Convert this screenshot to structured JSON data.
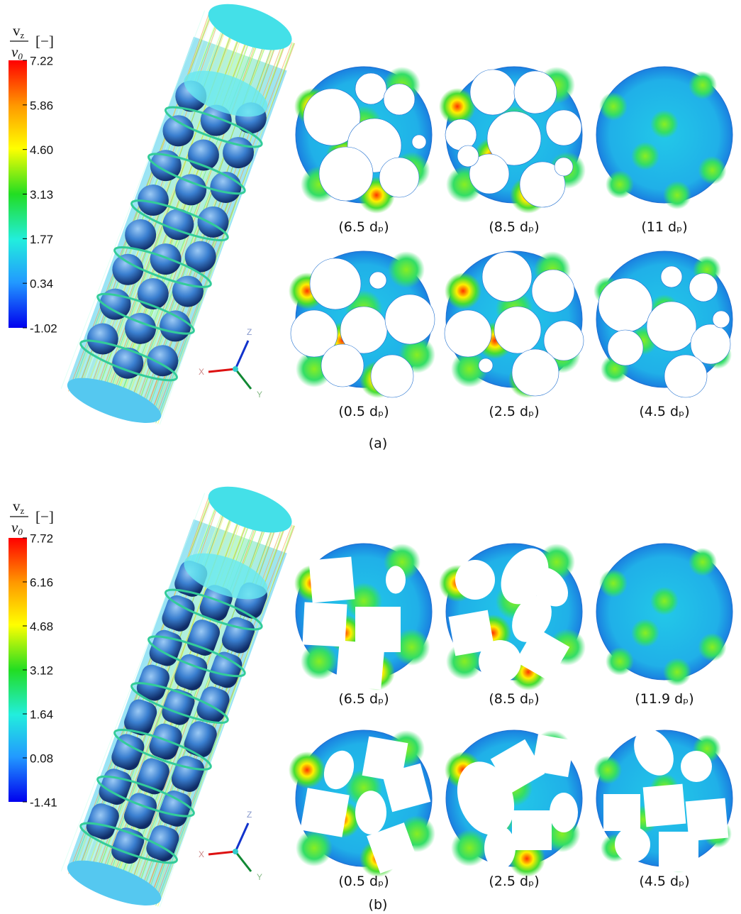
{
  "panels": [
    {
      "label": "(a)",
      "colorbar": {
        "numerator": {
          "text": "v",
          "sub": "z"
        },
        "denominator": {
          "text": "v",
          "sub": "0"
        },
        "unit": "[−]",
        "ticks": [
          "7.22",
          "5.86",
          "4.60",
          "3.13",
          "1.77",
          "0.34",
          "-1.02"
        ]
      },
      "axes": {
        "z": "Z",
        "x": "X",
        "y": "Y"
      },
      "sections": [
        "(6.5 dₚ)",
        "(8.5 dₚ)",
        "(11 dₚ)",
        "(0.5 dₚ)",
        "(2.5 dₚ)",
        "(4.5 dₚ)"
      ]
    },
    {
      "label": "(b)",
      "colorbar": {
        "numerator": {
          "text": "v",
          "sub": "z"
        },
        "denominator": {
          "text": "v",
          "sub": "0"
        },
        "unit": "[−]",
        "ticks": [
          "7.72",
          "6.16",
          "4.68",
          "3.12",
          "1.64",
          "0.08",
          "-1.41"
        ]
      },
      "axes": {
        "z": "Z",
        "x": "X",
        "y": "Y"
      },
      "sections": [
        "(6.5 dₚ)",
        "(8.5 dₚ)",
        "(11.9 dₚ)",
        "(0.5 dₚ)",
        "(2.5 dₚ)",
        "(4.5 dₚ)"
      ]
    }
  ]
}
